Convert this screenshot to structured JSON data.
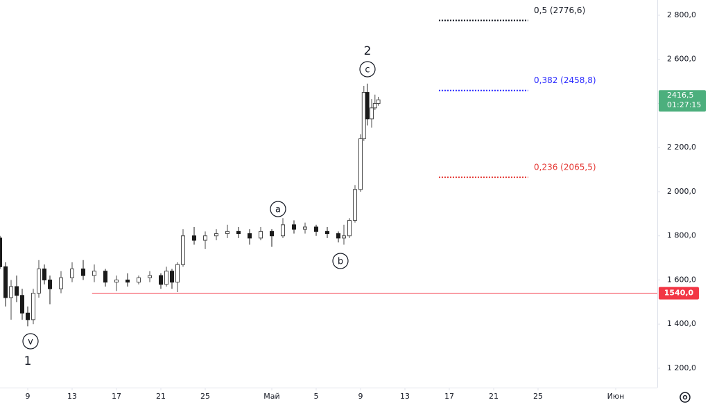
{
  "chart_data": {
    "type": "candlestick",
    "x": [
      -2.5,
      -2,
      -1.5,
      -1,
      -0.5,
      0,
      0.5,
      1,
      1.5,
      2,
      3,
      4,
      5,
      6,
      7,
      8,
      9,
      10,
      11,
      12,
      12.5,
      13,
      13.5,
      14,
      15,
      16,
      17,
      18,
      19,
      20,
      21,
      22,
      23,
      24,
      25,
      26,
      27,
      28,
      28.5,
      29,
      29.5,
      30,
      30.3,
      30.6,
      31,
      31.3,
      31.6
    ],
    "open": [
      1790,
      1660,
      1520,
      1570,
      1530,
      1450,
      1420,
      1540,
      1650,
      1600,
      1560,
      1610,
      1650,
      1620,
      1640,
      1590,
      1600,
      1590,
      1610,
      1620,
      1580,
      1640,
      1590,
      1670,
      1800,
      1780,
      1800,
      1810,
      1820,
      1810,
      1790,
      1820,
      1800,
      1850,
      1830,
      1840,
      1820,
      1810,
      1790,
      1800,
      1870,
      2010,
      2240,
      2450,
      2330,
      2380,
      2400
    ],
    "high": [
      1800,
      1680,
      1600,
      1620,
      1560,
      1480,
      1560,
      1690,
      1670,
      1620,
      1640,
      1680,
      1690,
      1670,
      1650,
      1620,
      1630,
      1620,
      1640,
      1630,
      1660,
      1650,
      1680,
      1830,
      1840,
      1820,
      1830,
      1850,
      1840,
      1830,
      1840,
      1830,
      1880,
      1870,
      1860,
      1850,
      1840,
      1820,
      1850,
      1880,
      2030,
      2260,
      2480,
      2490,
      2420,
      2440,
      2430
    ],
    "low": [
      1650,
      1480,
      1420,
      1500,
      1420,
      1390,
      1400,
      1520,
      1580,
      1490,
      1540,
      1590,
      1600,
      1590,
      1570,
      1550,
      1570,
      1580,
      1590,
      1560,
      1570,
      1560,
      1545,
      1660,
      1760,
      1740,
      1780,
      1790,
      1790,
      1760,
      1780,
      1750,
      1790,
      1810,
      1810,
      1800,
      1790,
      1770,
      1760,
      1790,
      1860,
      2000,
      2230,
      2300,
      2290,
      2370,
      2390
    ],
    "close": [
      1660,
      1520,
      1570,
      1530,
      1450,
      1420,
      1540,
      1650,
      1600,
      1560,
      1610,
      1650,
      1620,
      1640,
      1590,
      1600,
      1590,
      1610,
      1620,
      1580,
      1640,
      1590,
      1670,
      1800,
      1780,
      1800,
      1810,
      1820,
      1810,
      1790,
      1820,
      1800,
      1850,
      1830,
      1840,
      1820,
      1810,
      1790,
      1800,
      1870,
      2010,
      2240,
      2450,
      2330,
      2380,
      2400,
      2416.5
    ],
    "up_color": "#4a4a4a",
    "down_color": "#1a1a1a",
    "xlim": [
      -2.5,
      56.75
    ],
    "xticks": [
      {
        "value": 0,
        "label": "9"
      },
      {
        "value": 4,
        "label": "13"
      },
      {
        "value": 8,
        "label": "17"
      },
      {
        "value": 12,
        "label": "21"
      },
      {
        "value": 16,
        "label": "25"
      },
      {
        "value": 22,
        "label": "Май"
      },
      {
        "value": 26,
        "label": "5"
      },
      {
        "value": 30,
        "label": "9"
      },
      {
        "value": 34,
        "label": "13"
      },
      {
        "value": 38,
        "label": "17"
      },
      {
        "value": 42,
        "label": "21"
      },
      {
        "value": 46,
        "label": "25"
      },
      {
        "value": 53,
        "label": "Июн"
      }
    ],
    "ylim": [
      1112,
      2869
    ],
    "yticks": [
      {
        "value": 1200,
        "label": "1 200,0"
      },
      {
        "value": 1400,
        "label": "1 400,0"
      },
      {
        "value": 1600,
        "label": "1 600,0"
      },
      {
        "value": 1800,
        "label": "1 800,0"
      },
      {
        "value": 2000,
        "label": "2 000,0"
      },
      {
        "value": 2200,
        "label": "2 200,0"
      },
      {
        "value": 2400,
        "label": "2 400,0"
      },
      {
        "value": 2600,
        "label": "2 600,0"
      },
      {
        "value": 2800,
        "label": "2 800,0"
      }
    ],
    "grid": false,
    "fib_levels": [
      {
        "label": "0,5 (2776,6)",
        "value": 2776.6,
        "color": "#131722"
      },
      {
        "label": "0,382 (2458,8)",
        "value": 2458.8,
        "color": "#2a2aff"
      },
      {
        "label": "0,236 (2065,5)",
        "value": 2065.5,
        "color": "#e53935"
      }
    ],
    "support_line": {
      "value": 1540,
      "label": "1540,0",
      "color": "#f23645"
    },
    "last_price": {
      "value": 2416.5,
      "label": "2416,5",
      "countdown": "01:27:15",
      "color": "#4caf7d"
    },
    "wave_labels": [
      "1",
      "v",
      "a",
      "b",
      "c",
      "2"
    ]
  }
}
